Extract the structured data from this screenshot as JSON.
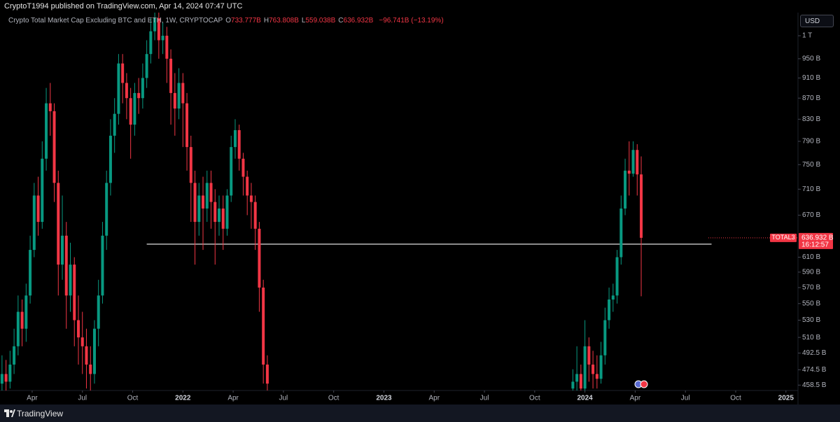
{
  "header": {
    "published": "CryptoT1994 published on TradingView.com, Apr 14, 2024 07:47 UTC",
    "currency": "USD",
    "brand": "TradingView"
  },
  "chart_data": {
    "type": "candlestick",
    "legend": {
      "symbol": "Crypto Total Market Cap Excluding BTC and ETH, 1W, CRYPTOCAP",
      "items": [
        {
          "key": "O",
          "value": "733.777B"
        },
        {
          "key": "H",
          "value": "763.808B"
        },
        {
          "key": "L",
          "value": "559.038B"
        },
        {
          "key": "C",
          "value": "636.932B"
        }
      ],
      "change": "−96.741B (−13.19%)"
    },
    "up_color": "#089981",
    "down_color": "#f23645",
    "log_scale": true,
    "xlim": [
      2021.09,
      2025.06
    ],
    "ylim": [
      453,
      1053
    ],
    "xticks": [
      {
        "value": 2021.25,
        "label": "Apr"
      },
      {
        "value": 2021.5,
        "label": "Jul"
      },
      {
        "value": 2021.75,
        "label": "Oct"
      },
      2022,
      {
        "value": 2022.25,
        "label": "Apr"
      },
      {
        "value": 2022.5,
        "label": "Jul"
      },
      {
        "value": 2022.75,
        "label": "Oct"
      },
      2023,
      {
        "value": 2023.25,
        "label": "Apr"
      },
      {
        "value": 2023.5,
        "label": "Jul"
      },
      {
        "value": 2023.75,
        "label": "Oct"
      },
      2024,
      {
        "value": 2024.25,
        "label": "Apr"
      },
      {
        "value": 2024.5,
        "label": "Jul"
      },
      {
        "value": 2024.75,
        "label": "Oct"
      },
      2025
    ],
    "yticks": [
      {
        "value": 1000,
        "label": "1 T"
      },
      {
        "value": 950,
        "label": "950 B"
      },
      {
        "value": 910,
        "label": "910 B"
      },
      {
        "value": 870,
        "label": "870 B"
      },
      {
        "value": 830,
        "label": "830 B"
      },
      {
        "value": 790,
        "label": "790 B"
      },
      {
        "value": 750,
        "label": "750 B"
      },
      {
        "value": 710,
        "label": "710 B"
      },
      {
        "value": 670,
        "label": "670 B"
      },
      {
        "value": 610,
        "label": "610 B"
      },
      {
        "value": 590,
        "label": "590 B"
      },
      {
        "value": 570,
        "label": "570 B"
      },
      {
        "value": 550,
        "label": "550 B"
      },
      {
        "value": 530,
        "label": "530 B"
      },
      {
        "value": 510,
        "label": "510 B"
      },
      {
        "value": 492.5,
        "label": "492.5 B"
      },
      {
        "value": 474.5,
        "label": "474.5 B"
      },
      {
        "value": 458.5,
        "label": "458.5 B"
      }
    ],
    "x": [
      2021.1,
      2021.12,
      2021.14,
      2021.16,
      2021.18,
      2021.2,
      2021.22,
      2021.24,
      2021.26,
      2021.28,
      2021.3,
      2021.32,
      2021.34,
      2021.36,
      2021.38,
      2021.4,
      2021.42,
      2021.44,
      2021.46,
      2021.48,
      2021.5,
      2021.52,
      2021.54,
      2021.56,
      2021.58,
      2021.6,
      2021.62,
      2021.64,
      2021.66,
      2021.68,
      2021.7,
      2021.72,
      2021.74,
      2021.76,
      2021.78,
      2021.8,
      2021.82,
      2021.84,
      2021.86,
      2021.88,
      2021.9,
      2021.92,
      2021.94,
      2021.96,
      2021.98,
      2022.0,
      2022.02,
      2022.04,
      2022.06,
      2022.08,
      2022.1,
      2022.12,
      2022.14,
      2022.16,
      2022.18,
      2022.2,
      2022.22,
      2022.24,
      2022.26,
      2022.28,
      2022.3,
      2022.32,
      2022.34,
      2022.36,
      2022.38,
      2022.4,
      2022.42,
      2023.94,
      2023.96,
      2023.98,
      2024.0,
      2024.02,
      2024.04,
      2024.06,
      2024.08,
      2024.1,
      2024.12,
      2024.14,
      2024.16,
      2024.18,
      2024.2,
      2024.22,
      2024.24,
      2024.26,
      2024.28
    ],
    "open": [
      460,
      470,
      462,
      480,
      500,
      540,
      520,
      560,
      620,
      700,
      660,
      760,
      860,
      845,
      720,
      600,
      640,
      560,
      600,
      530,
      510,
      500,
      480,
      470,
      520,
      560,
      640,
      720,
      800,
      840,
      940,
      900,
      870,
      820,
      880,
      870,
      910,
      960,
      1010,
      1040,
      990,
      1000,
      950,
      880,
      850,
      900,
      860,
      780,
      720,
      660,
      700,
      680,
      720,
      690,
      660,
      680,
      650,
      700,
      780,
      810,
      760,
      730,
      700,
      690,
      650,
      570,
      480,
      455,
      462,
      470,
      455,
      500,
      480,
      470,
      465,
      490,
      530,
      555,
      560,
      610,
      680,
      740,
      735,
      775,
      733.777
    ],
    "high": [
      490,
      485,
      495,
      520,
      560,
      555,
      575,
      640,
      720,
      730,
      790,
      890,
      900,
      860,
      740,
      700,
      660,
      630,
      610,
      560,
      540,
      520,
      500,
      530,
      580,
      660,
      740,
      830,
      870,
      960,
      960,
      920,
      890,
      900,
      910,
      940,
      990,
      1040,
      1060,
      1060,
      1030,
      1020,
      970,
      920,
      930,
      920,
      880,
      800,
      740,
      720,
      730,
      740,
      740,
      710,
      700,
      700,
      710,
      800,
      830,
      820,
      770,
      740,
      720,
      700,
      660,
      580,
      490,
      475,
      500,
      480,
      530,
      510,
      495,
      490,
      505,
      545,
      570,
      575,
      620,
      700,
      760,
      790,
      790,
      785,
      763.808
    ],
    "low": [
      445,
      448,
      455,
      470,
      490,
      500,
      505,
      550,
      610,
      640,
      650,
      740,
      800,
      690,
      560,
      580,
      520,
      540,
      500,
      480,
      470,
      455,
      450,
      460,
      500,
      550,
      620,
      700,
      770,
      820,
      860,
      830,
      760,
      800,
      840,
      850,
      890,
      940,
      990,
      950,
      960,
      900,
      820,
      800,
      830,
      780,
      740,
      660,
      600,
      640,
      620,
      660,
      650,
      600,
      640,
      620,
      640,
      690,
      760,
      740,
      700,
      670,
      650,
      620,
      540,
      460,
      440,
      445,
      452,
      448,
      450,
      462,
      455,
      455,
      460,
      480,
      520,
      540,
      550,
      600,
      670,
      700,
      730,
      700,
      559.038
    ],
    "close": [
      470,
      462,
      480,
      500,
      540,
      520,
      560,
      620,
      700,
      660,
      760,
      860,
      845,
      720,
      600,
      640,
      560,
      600,
      530,
      510,
      500,
      480,
      470,
      520,
      560,
      640,
      720,
      800,
      840,
      940,
      900,
      870,
      820,
      880,
      870,
      910,
      960,
      1010,
      1040,
      990,
      1000,
      950,
      880,
      850,
      900,
      860,
      780,
      720,
      660,
      700,
      680,
      720,
      690,
      660,
      680,
      650,
      700,
      780,
      810,
      760,
      730,
      700,
      690,
      650,
      570,
      480,
      460,
      462,
      470,
      455,
      500,
      480,
      470,
      465,
      490,
      530,
      555,
      560,
      610,
      680,
      740,
      735,
      775,
      733.777,
      636.932
    ],
    "hline": {
      "value": 628,
      "x": [
        2021.82,
        2024.63
      ],
      "color": "#e0e0e0"
    },
    "last_price": {
      "symbol": "TOTAL3",
      "value": 636.932,
      "label": "636.932 B",
      "countdown": "16:12:57"
    }
  }
}
